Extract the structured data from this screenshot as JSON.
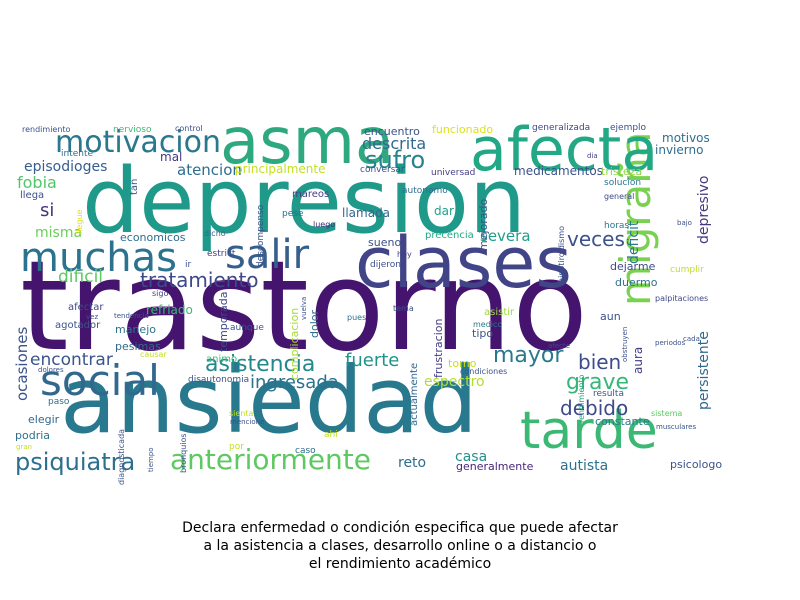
{
  "wordcloud": {
    "words": [
      {
        "text": "trastorno",
        "color": "#45146e"
      },
      {
        "text": "depresion",
        "color": "#1f9a8a"
      },
      {
        "text": "ansiedad",
        "color": "#28788e"
      },
      {
        "text": "clases",
        "color": "#414487"
      },
      {
        "text": "migraña",
        "color": "#7ad151"
      },
      {
        "text": "afecta",
        "color": "#22a884"
      },
      {
        "text": "asma",
        "color": "#2ea97f"
      },
      {
        "text": "tarde",
        "color": "#3bb873"
      },
      {
        "text": "social",
        "color": "#31688e"
      },
      {
        "text": "salir",
        "color": "#355f8d"
      },
      {
        "text": "muchas",
        "color": "#2c728e"
      },
      {
        "text": "motivacion",
        "color": "#2a788e"
      },
      {
        "text": "anteriormente",
        "color": "#5ec962"
      },
      {
        "text": "psiquiatra",
        "color": "#2d708e"
      },
      {
        "text": "asistencia",
        "color": "#23888e"
      },
      {
        "text": "tratamiento",
        "color": "#3f4889"
      },
      {
        "text": "mayor",
        "color": "#2a788e"
      },
      {
        "text": "sufro",
        "color": "#26828e"
      },
      {
        "text": "veces",
        "color": "#3b528b"
      },
      {
        "text": "fuerte",
        "color": "#21918c"
      },
      {
        "text": "debido",
        "color": "#3e4a89"
      },
      {
        "text": "grave",
        "color": "#35b779"
      },
      {
        "text": "bien",
        "color": "#3e4c8a"
      },
      {
        "text": "ingresada",
        "color": "#2c728e"
      },
      {
        "text": "descrita",
        "color": "#306a8e"
      },
      {
        "text": "atencion",
        "color": "#2f6c8e"
      },
      {
        "text": "si",
        "color": "#46337f"
      },
      {
        "text": "fobia",
        "color": "#52c569"
      },
      {
        "text": "misma",
        "color": "#6ccd5a"
      },
      {
        "text": "severa",
        "color": "#1f9e89"
      },
      {
        "text": "dificil",
        "color": "#5ec962"
      },
      {
        "text": "encontrar",
        "color": "#3a548c"
      },
      {
        "text": "casa",
        "color": "#21918c"
      },
      {
        "text": "autista",
        "color": "#2c718e"
      },
      {
        "text": "reto",
        "color": "#2f6c8e"
      },
      {
        "text": "espectro",
        "color": "#b5de2b"
      },
      {
        "text": "episodioges",
        "color": "#365d8d"
      },
      {
        "text": "ocasiones",
        "color": "#3b528b"
      },
      {
        "text": "deficit",
        "color": "#2a778e"
      },
      {
        "text": "depresivo",
        "color": "#453882"
      },
      {
        "text": "persistente",
        "color": "#31688e"
      },
      {
        "text": "aura",
        "color": "#433e85"
      },
      {
        "text": "motivos",
        "color": "#2d708e"
      },
      {
        "text": "invierno",
        "color": "#2e6e8e"
      },
      {
        "text": "medicamentos",
        "color": "#3b528b"
      },
      {
        "text": "encuentro",
        "color": "#3b528b"
      },
      {
        "text": "funcionado",
        "color": "#dde318"
      },
      {
        "text": "generalizada",
        "color": "#3f4788"
      },
      {
        "text": "ejemplo",
        "color": "#3c4f8a"
      },
      {
        "text": "principalmente",
        "color": "#c2df23"
      },
      {
        "text": "mal",
        "color": "#453882"
      },
      {
        "text": "economicos",
        "color": "#2f6c8e"
      },
      {
        "text": "llamada",
        "color": "#31688e"
      },
      {
        "text": "dar",
        "color": "#1fa287"
      },
      {
        "text": "sueno",
        "color": "#3c4f8a"
      },
      {
        "text": "precencia",
        "color": "#22a884"
      },
      {
        "text": "dejarme",
        "color": "#3e4989"
      },
      {
        "text": "duermo",
        "color": "#2d708e"
      },
      {
        "text": "aun",
        "color": "#3b528b"
      },
      {
        "text": "tipo",
        "color": "#3b528b"
      },
      {
        "text": "tomo",
        "color": "#c8e020"
      },
      {
        "text": "frustracion",
        "color": "#433e85"
      },
      {
        "text": "asistir",
        "color": "#9dd93b"
      },
      {
        "text": "complicacion",
        "color": "#a8db34"
      },
      {
        "text": "temporada",
        "color": "#3f4889"
      },
      {
        "text": "dolor",
        "color": "#2e6e8e"
      },
      {
        "text": "pesimas",
        "color": "#31688e"
      },
      {
        "text": "manejo",
        "color": "#2c728e"
      },
      {
        "text": "animo",
        "color": "#3bbb75"
      },
      {
        "text": "refriado",
        "color": "#3bbb75"
      },
      {
        "text": "afectar",
        "color": "#3f4788"
      },
      {
        "text": "agotador",
        "color": "#3b528b"
      },
      {
        "text": "elegir",
        "color": "#31688e"
      },
      {
        "text": "podria",
        "color": "#2d708e"
      },
      {
        "text": "paso",
        "color": "#2e6e8e"
      },
      {
        "text": "generalmente",
        "color": "#482677"
      },
      {
        "text": "psicologo",
        "color": "#3b528b"
      },
      {
        "text": "constante",
        "color": "#2a788e"
      },
      {
        "text": "resulta",
        "color": "#39568c"
      },
      {
        "text": "actualmente",
        "color": "#31688e"
      },
      {
        "text": "mejorado",
        "color": "#3b528b"
      },
      {
        "text": "autonomo",
        "color": "#2d708e"
      },
      {
        "text": "universad",
        "color": "#433e85"
      },
      {
        "text": "conversar",
        "color": "#3a548c"
      },
      {
        "text": "mareos",
        "color": "#433e85"
      },
      {
        "text": "pese",
        "color": "#2f6c8e"
      },
      {
        "text": "luego",
        "color": "#482677"
      },
      {
        "text": "descompenso",
        "color": "#3b528b"
      },
      {
        "text": "dicho",
        "color": "#31688e"
      },
      {
        "text": "estrict",
        "color": "#433e85"
      },
      {
        "text": "ir",
        "color": "#3b528b"
      },
      {
        "text": "aunque",
        "color": "#3b528b"
      },
      {
        "text": "disautonomia",
        "color": "#3b528b"
      },
      {
        "text": "hoy",
        "color": "#433e85"
      },
      {
        "text": "dijeron",
        "color": "#3b528b"
      },
      {
        "text": "tema",
        "color": "#3b528b"
      },
      {
        "text": "pues",
        "color": "#2e6e8e"
      },
      {
        "text": "medico",
        "color": "#2a788e"
      },
      {
        "text": "condiciones",
        "color": "#3b528b"
      },
      {
        "text": "tristeza",
        "color": "#8fd744"
      },
      {
        "text": "solucion",
        "color": "#2a788e"
      },
      {
        "text": "general",
        "color": "#3f4788"
      },
      {
        "text": "horas",
        "color": "#2a788e"
      },
      {
        "text": "hipotiroidismo",
        "color": "#3b528b"
      },
      {
        "text": "rendimiento",
        "color": "#23a983"
      },
      {
        "text": "afecte",
        "color": "#3f4889"
      },
      {
        "text": "cumplir",
        "color": "#c0df25"
      },
      {
        "text": "palpitaciones",
        "color": "#3f4889"
      },
      {
        "text": "periodos",
        "color": "#3b528b"
      },
      {
        "text": "obstruyen",
        "color": "#3b528b"
      },
      {
        "text": "sistema",
        "color": "#5ec962"
      },
      {
        "text": "musculares",
        "color": "#3b528b"
      },
      {
        "text": "cada",
        "color": "#3b528b"
      },
      {
        "text": "bajo",
        "color": "#3b528b"
      },
      {
        "text": "dia",
        "color": "#433e85"
      },
      {
        "text": "nervioso",
        "color": "#3bbb75"
      },
      {
        "text": "control",
        "color": "#3b528b"
      },
      {
        "text": "rendimiento",
        "color": "#3b528b"
      },
      {
        "text": "intente",
        "color": "#2e6e8e"
      },
      {
        "text": "llega",
        "color": "#3b528b"
      },
      {
        "text": "llegue",
        "color": "#dde318"
      },
      {
        "text": "tan",
        "color": "#3b528b"
      },
      {
        "text": "sigo",
        "color": "#433e85"
      },
      {
        "text": "tendencia",
        "color": "#3b528b"
      },
      {
        "text": "vez",
        "color": "#3b528b"
      },
      {
        "text": "dolores",
        "color": "#3b528b"
      },
      {
        "text": "diagnosticada",
        "color": "#3b528b"
      },
      {
        "text": "tiempo",
        "color": "#3b528b"
      },
      {
        "text": "bronquios",
        "color": "#3b528b"
      },
      {
        "text": "sienta",
        "color": "#c2df23"
      },
      {
        "text": "mencione",
        "color": "#3b528b"
      },
      {
        "text": "por",
        "color": "#c2df23"
      },
      {
        "text": "ahi",
        "color": "#c2df23"
      },
      {
        "text": "caso",
        "color": "#2e6e8e"
      },
      {
        "text": "causar",
        "color": "#c2df23"
      },
      {
        "text": "gran",
        "color": "#c2df23"
      },
      {
        "text": "vuelva",
        "color": "#3b528b"
      }
    ]
  },
  "caption": {
    "line1": "Declara enfermedad o condición especifica que puede afectar",
    "line2": "a la asistencia a clases, desarrollo online o a distancio o",
    "line3": "el rendimiento académico"
  }
}
